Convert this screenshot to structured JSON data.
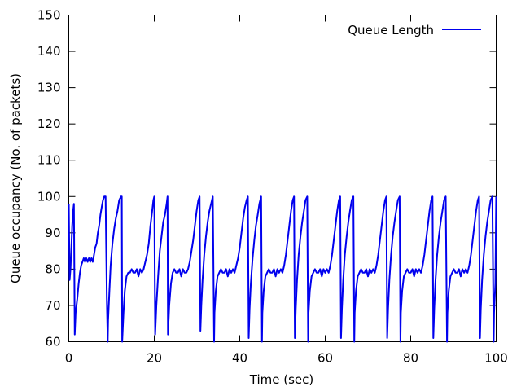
{
  "chart_data": {
    "type": "line",
    "title": "",
    "xlabel": "Time (sec)",
    "ylabel": "Queue occupancy (No. of packets)",
    "xlim": [
      0,
      100
    ],
    "ylim": [
      60,
      150
    ],
    "xticks": [
      0,
      20,
      40,
      60,
      80,
      100
    ],
    "yticks": [
      60,
      70,
      80,
      90,
      100,
      110,
      120,
      130,
      140,
      150
    ],
    "grid": false,
    "legend_position": "top-right",
    "series": [
      {
        "name": "Queue Length",
        "color": "#0000ee",
        "x": [
          0,
          0.2,
          0.4,
          0.6,
          0.8,
          1.0,
          1.2,
          1.4,
          1.6,
          1.8,
          2.0,
          2.3,
          2.6,
          2.9,
          3.2,
          3.5,
          3.8,
          4.1,
          4.4,
          4.7,
          5.0,
          5.3,
          5.6,
          5.9,
          6.2,
          6.5,
          6.8,
          7.1,
          7.4,
          7.7,
          8.0,
          8.3,
          8.6,
          8.9,
          9.1,
          9.2,
          9.5,
          9.8,
          10.2,
          10.6,
          11.0,
          11.4,
          11.8,
          12.2,
          12.4,
          12.5,
          12.8,
          13.1,
          13.5,
          13.9,
          14.3,
          14.7,
          15.1,
          15.5,
          15.9,
          16.3,
          16.7,
          17.1,
          17.5,
          17.9,
          18.3,
          18.7,
          19.1,
          19.5,
          19.8,
          20.0,
          20.2,
          20.5,
          20.9,
          21.3,
          21.7,
          22.1,
          22.5,
          22.9,
          23.1,
          23.2,
          23.5,
          23.9,
          24.3,
          24.7,
          25.1,
          25.5,
          25.9,
          26.3,
          26.7,
          27.1,
          27.5,
          27.9,
          28.3,
          28.7,
          29.1,
          29.5,
          29.9,
          30.3,
          30.6,
          30.8,
          31.0,
          31.3,
          31.7,
          32.1,
          32.5,
          32.9,
          33.3,
          33.7,
          34.0,
          34.1,
          34.4,
          34.8,
          35.2,
          35.6,
          36.0,
          36.4,
          36.8,
          37.2,
          37.6,
          38.0,
          38.4,
          38.8,
          39.2,
          39.6,
          40.0,
          40.4,
          40.8,
          41.2,
          41.6,
          41.9,
          42.1,
          42.3,
          42.6,
          43.0,
          43.4,
          43.8,
          44.2,
          44.6,
          45.0,
          45.2,
          45.3,
          45.6,
          46.0,
          46.4,
          46.8,
          47.2,
          47.6,
          48.0,
          48.4,
          48.8,
          49.2,
          49.6,
          50.0,
          50.4,
          50.8,
          51.2,
          51.6,
          52.0,
          52.4,
          52.7,
          52.9,
          53.1,
          53.4,
          53.8,
          54.2,
          54.6,
          55.0,
          55.4,
          55.8,
          56.0,
          56.1,
          56.4,
          56.8,
          57.2,
          57.6,
          58.0,
          58.4,
          58.8,
          59.2,
          59.6,
          60.0,
          60.4,
          60.8,
          61.2,
          61.6,
          62.0,
          62.4,
          62.8,
          63.2,
          63.5,
          63.7,
          63.9,
          64.2,
          64.6,
          65.0,
          65.4,
          65.8,
          66.2,
          66.6,
          66.8,
          66.9,
          67.2,
          67.6,
          68.0,
          68.4,
          68.8,
          69.2,
          69.6,
          70.0,
          70.4,
          70.8,
          71.2,
          71.6,
          72.0,
          72.4,
          72.8,
          73.2,
          73.6,
          74.0,
          74.3,
          74.5,
          74.7,
          75.0,
          75.4,
          75.8,
          76.2,
          76.6,
          77.0,
          77.4,
          77.6,
          77.7,
          78.0,
          78.4,
          78.8,
          79.2,
          79.6,
          80.0,
          80.4,
          80.8,
          81.2,
          81.6,
          82.0,
          82.4,
          82.8,
          83.2,
          83.6,
          84.0,
          84.4,
          84.8,
          85.1,
          85.3,
          85.5,
          85.8,
          86.2,
          86.6,
          87.0,
          87.4,
          87.8,
          88.2,
          88.5,
          88.6,
          88.9,
          89.3,
          89.7,
          90.1,
          90.5,
          90.9,
          91.3,
          91.7,
          92.1,
          92.5,
          92.9,
          93.3,
          93.7,
          94.1,
          94.5,
          94.9,
          95.3,
          95.7,
          96.0,
          96.2,
          96.4,
          96.7,
          97.1,
          97.5,
          97.9,
          98.3,
          98.7,
          99.1,
          99.4,
          99.5,
          99.8,
          100.0
        ],
        "y": [
          98,
          77,
          80,
          86,
          92,
          96,
          98,
          62,
          68,
          70,
          72,
          76,
          79,
          81,
          82,
          83,
          82,
          83,
          82,
          83,
          82,
          83,
          82,
          84,
          86,
          87,
          90,
          92,
          95,
          97,
          99,
          100,
          100,
          72,
          60,
          66,
          74,
          81,
          87,
          91,
          94,
          96,
          99,
          100,
          100,
          60,
          68,
          74,
          78,
          79,
          79,
          80,
          79,
          79,
          80,
          78,
          80,
          79,
          80,
          82,
          84,
          87,
          92,
          96,
          99,
          100,
          62,
          70,
          78,
          85,
          89,
          93,
          95,
          98,
          100,
          62,
          70,
          76,
          79,
          80,
          79,
          79,
          80,
          78,
          80,
          79,
          79,
          80,
          82,
          85,
          88,
          92,
          96,
          99,
          100,
          63,
          70,
          77,
          84,
          89,
          93,
          96,
          98,
          100,
          60,
          68,
          74,
          78,
          79,
          80,
          79,
          79,
          80,
          78,
          80,
          79,
          80,
          79,
          81,
          83,
          86,
          90,
          94,
          97,
          99,
          100,
          61,
          69,
          76,
          83,
          88,
          92,
          95,
          98,
          100,
          60,
          68,
          74,
          78,
          79,
          80,
          79,
          79,
          80,
          78,
          80,
          79,
          80,
          79,
          81,
          84,
          88,
          92,
          96,
          99,
          100,
          61,
          69,
          77,
          84,
          89,
          93,
          96,
          99,
          100,
          60,
          68,
          74,
          78,
          79,
          80,
          79,
          79,
          80,
          78,
          80,
          79,
          80,
          79,
          81,
          84,
          88,
          92,
          96,
          99,
          100,
          61,
          69,
          77,
          84,
          89,
          93,
          96,
          99,
          100,
          60,
          68,
          74,
          78,
          79,
          80,
          79,
          79,
          80,
          78,
          80,
          79,
          80,
          79,
          81,
          84,
          88,
          92,
          96,
          99,
          100,
          61,
          69,
          77,
          84,
          89,
          93,
          96,
          99,
          100,
          60,
          68,
          74,
          78,
          79,
          80,
          79,
          79,
          80,
          78,
          80,
          79,
          80,
          79,
          81,
          84,
          88,
          92,
          96,
          99,
          100,
          61,
          69,
          77,
          84,
          89,
          93,
          96,
          99,
          100,
          60,
          68,
          74,
          78,
          79,
          80,
          79,
          79,
          80,
          78,
          80,
          79,
          80,
          79,
          81,
          84,
          88,
          92,
          96,
          99,
          100,
          61,
          69,
          77,
          84,
          89,
          93,
          96,
          99,
          100,
          60,
          68,
          76,
          100
        ]
      }
    ]
  }
}
